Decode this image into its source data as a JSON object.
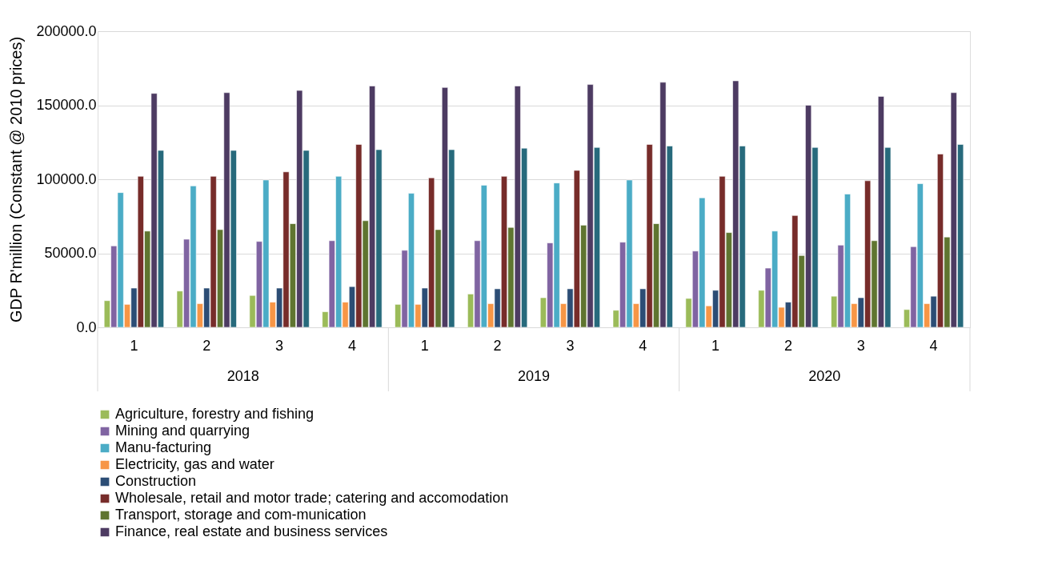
{
  "chart_data": {
    "type": "bar",
    "ylabel": "GDP R'million  (Constant  @ 2010 prices)",
    "categories": [
      "1",
      "2",
      "3",
      "4",
      "1",
      "2",
      "3",
      "4",
      "1",
      "2",
      "3",
      "4"
    ],
    "annotations": [
      "2018",
      "2019",
      "2020"
    ],
    "ylim": [
      0,
      200000
    ],
    "yticks": [
      {
        "value": 0,
        "label": "0.0"
      },
      {
        "value": 50000,
        "label": "50000.0"
      },
      {
        "value": 100000,
        "label": "100000.0"
      },
      {
        "value": 150000,
        "label": "150000.0"
      },
      {
        "value": 200000,
        "label": "200000.0"
      }
    ],
    "grid": "y",
    "legend": "bottom",
    "series": [
      {
        "name": "Agriculture, forestry and fishing",
        "color": "#9bbb59",
        "values": [
          18000,
          24500,
          21500,
          10500,
          15500,
          22500,
          20000,
          11500,
          19500,
          25000,
          21000,
          12000
        ]
      },
      {
        "name": "Mining and quarrying",
        "color": "#8064a2",
        "values": [
          55000,
          59500,
          58000,
          58500,
          52000,
          58500,
          57000,
          57500,
          51500,
          40000,
          55500,
          54500
        ]
      },
      {
        "name": "Manu-facturing",
        "color": "#4bacc6",
        "values": [
          91000,
          95500,
          99500,
          102000,
          90500,
          96000,
          97500,
          99500,
          87500,
          65000,
          90000,
          97000
        ]
      },
      {
        "name": "Electricity, gas and water",
        "color": "#f79646",
        "values": [
          15500,
          16000,
          17000,
          17000,
          15500,
          16000,
          16000,
          16000,
          14500,
          13500,
          16000,
          16000
        ]
      },
      {
        "name": "Construction",
        "color": "#2c4d75",
        "values": [
          26500,
          26500,
          26500,
          27500,
          26500,
          26000,
          26000,
          26000,
          25000,
          17000,
          20000,
          21000
        ]
      },
      {
        "name": "Wholesale, retail and motor trade; catering and accomodation",
        "color": "#772c2a",
        "values": [
          102000,
          102000,
          105000,
          123500,
          101000,
          102000,
          106000,
          123500,
          102000,
          75500,
          99000,
          117000
        ]
      },
      {
        "name": "Transport, storage and com-munication",
        "color": "#5f7530",
        "values": [
          65000,
          66000,
          70000,
          72000,
          66000,
          67500,
          69000,
          70000,
          64000,
          48500,
          58500,
          61000
        ]
      },
      {
        "name": "Finance, real estate and business services",
        "color": "#4d3b62",
        "values": [
          158000,
          158500,
          160000,
          163000,
          162000,
          163000,
          164000,
          165500,
          166500,
          150000,
          156000,
          158500
        ]
      },
      {
        "color": "#276a7c",
        "values": [
          119500,
          119500,
          119500,
          120000,
          120000,
          121000,
          121500,
          122500,
          122500,
          121500,
          121500,
          123500
        ]
      }
    ]
  }
}
